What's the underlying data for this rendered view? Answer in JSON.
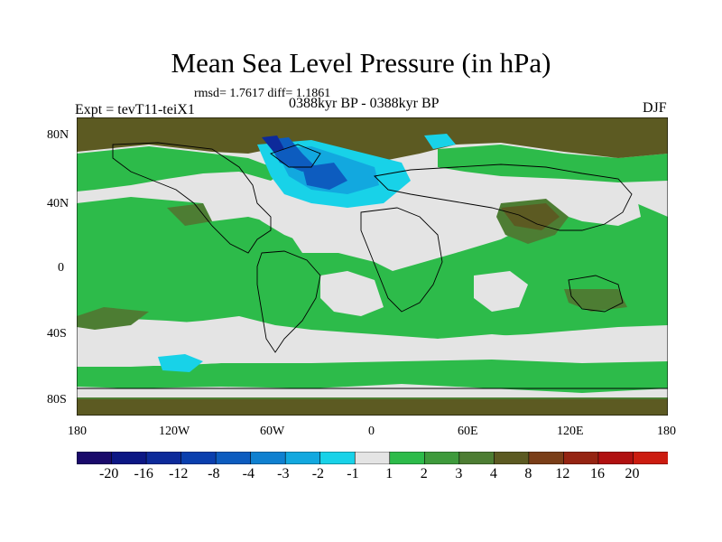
{
  "figure": {
    "title": "Mean Sea Level Pressure (in hPa)",
    "stats": "rmsd= 1.7617 diff= 1.1861",
    "period": "0388kyr BP - 0388kyr BP",
    "experiment": "Expt = tevT11-teiX1",
    "season": "DJF"
  },
  "axes": {
    "y_ticks": [
      "80N",
      "40N",
      "0",
      "40S",
      "80S"
    ],
    "x_ticks": [
      "180",
      "120W",
      "60W",
      "0",
      "60E",
      "120E",
      "180"
    ]
  },
  "colorbar": {
    "labels": [
      "-20",
      "-16",
      "-12",
      "-8",
      "-4",
      "-3",
      "-2",
      "-1",
      "1",
      "2",
      "3",
      "4",
      "8",
      "12",
      "16",
      "20"
    ],
    "colors": [
      "#1a0a6b",
      "#0c1784",
      "#0d2a9a",
      "#0a3fae",
      "#0d5cbf",
      "#0f80d0",
      "#12a8df",
      "#18d2e8",
      "#e4e4e4",
      "#2dbb4a",
      "#3e9a3c",
      "#4d7d33",
      "#5c5a22",
      "#7a3e18",
      "#952412",
      "#b01010",
      "#cc1c10"
    ]
  },
  "legend_colors": {
    "background": "#e4e4e4",
    "green": "#2dbb4a",
    "dark_green": "#4d7d33",
    "brown": "#5c5a22",
    "light_blue": "#18d2e8",
    "mid_blue": "#12a8df",
    "dark_blue": "#0d5cbf",
    "deep_blue": "#0d2a9a"
  }
}
